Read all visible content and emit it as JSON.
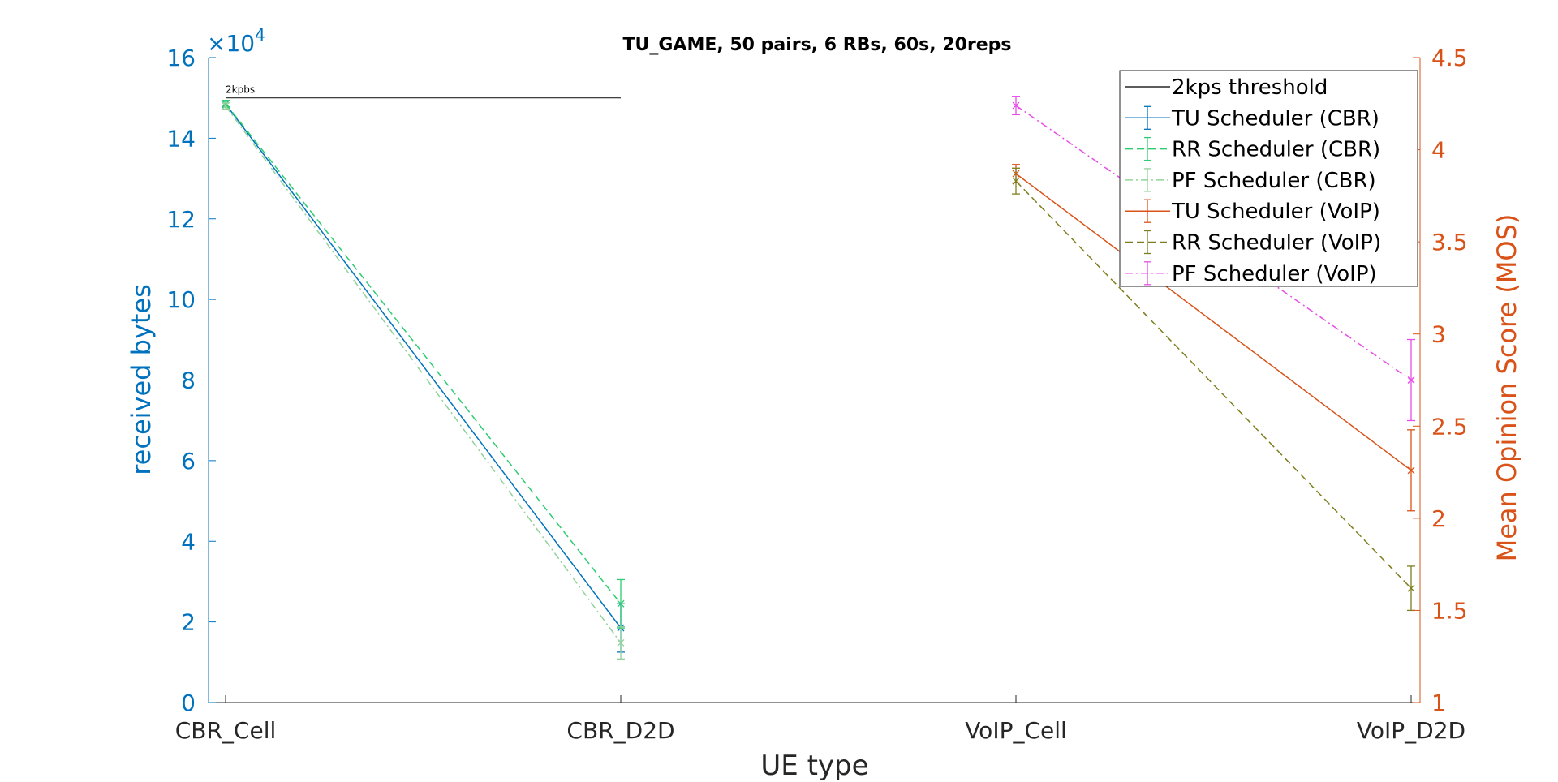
{
  "chart_data": {
    "type": "line",
    "title": "TU_GAME, 50 pairs, 6 RBs, 60s, 20reps",
    "xlabel": "UE type",
    "categories": [
      "CBR_Cell",
      "CBR_D2D",
      "VoIP_Cell",
      "VoIP_D2D"
    ],
    "left_axis": {
      "label": "received bytes",
      "exponent_label": "×10",
      "exponent_power": "4",
      "range": [
        0,
        160000
      ],
      "ticks": [
        0,
        20000,
        40000,
        60000,
        80000,
        100000,
        120000,
        140000,
        160000
      ],
      "tick_labels": [
        "0",
        "2",
        "4",
        "6",
        "8",
        "10",
        "12",
        "14",
        "16"
      ],
      "color": "#0072bd"
    },
    "right_axis": {
      "label": "Mean Opinion Score (MOS)",
      "range": [
        1,
        4.5
      ],
      "ticks": [
        1,
        1.5,
        2,
        2.5,
        3,
        3.5,
        4,
        4.5
      ],
      "tick_labels": [
        "1",
        "1.5",
        "2",
        "2.5",
        "3",
        "3.5",
        "4",
        "4.5"
      ],
      "color": "#d95319"
    },
    "threshold": {
      "name": "2kps threshold",
      "value": 150000,
      "x_range": [
        "CBR_Cell",
        "CBR_D2D"
      ],
      "annotation": "2kpbs",
      "color": "#262626"
    },
    "series": [
      {
        "name": "TU Scheduler (CBR)",
        "axis": "left",
        "color": "#0072bd",
        "dash": "solid",
        "x": [
          "CBR_Cell",
          "CBR_D2D"
        ],
        "y": [
          148500,
          18500
        ],
        "err": [
          800,
          6000
        ]
      },
      {
        "name": "RR Scheduler (CBR)",
        "axis": "left",
        "color": "#2ecc71",
        "dash": "dashed",
        "x": [
          "CBR_Cell",
          "CBR_D2D"
        ],
        "y": [
          148600,
          24500
        ],
        "err": [
          800,
          6000
        ]
      },
      {
        "name": "PF Scheduler (CBR)",
        "axis": "left",
        "color": "#92d29a",
        "dash": "dashdot",
        "x": [
          "CBR_Cell",
          "CBR_D2D"
        ],
        "y": [
          148000,
          14800
        ],
        "err": [
          800,
          4000
        ]
      },
      {
        "name": "TU Scheduler (VoIP)",
        "axis": "right",
        "color": "#d95319",
        "dash": "solid",
        "x": [
          "VoIP_Cell",
          "VoIP_D2D"
        ],
        "y": [
          3.87,
          2.26
        ],
        "err": [
          0.05,
          0.22
        ]
      },
      {
        "name": "RR Scheduler (VoIP)",
        "axis": "right",
        "color": "#7e7e1e",
        "dash": "dashed",
        "x": [
          "VoIP_Cell",
          "VoIP_D2D"
        ],
        "y": [
          3.83,
          1.62
        ],
        "err": [
          0.07,
          0.12
        ]
      },
      {
        "name": "PF Scheduler (VoIP)",
        "axis": "right",
        "color": "#e84de8",
        "dash": "dashdot",
        "x": [
          "VoIP_Cell",
          "VoIP_D2D"
        ],
        "y": [
          4.24,
          2.75
        ],
        "err": [
          0.05,
          0.22
        ]
      }
    ],
    "legend_position": "top-right",
    "grid": false
  }
}
